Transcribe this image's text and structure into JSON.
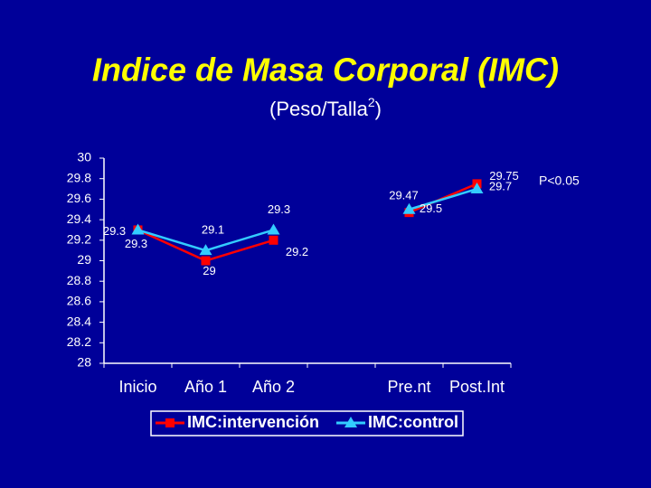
{
  "chart_data": {
    "type": "line",
    "title": "Indice de Masa Corporal (IMC)",
    "subtitle_parts": [
      "(Peso/Talla",
      "2",
      ")"
    ],
    "annotation": "P<0.05",
    "categories": [
      "Inicio",
      "Año 1",
      "Año 2",
      null,
      "Pre.nt",
      "Post.Int"
    ],
    "series": [
      {
        "name": "IMC:intervención",
        "color": "#ff0000",
        "marker": "square",
        "values": [
          29.3,
          29,
          29.2,
          null,
          29.47,
          29.75
        ]
      },
      {
        "name": "IMC:control",
        "color": "#33ccff",
        "marker": "triangle",
        "values": [
          29.3,
          29.1,
          29.3,
          null,
          29.5,
          29.7
        ]
      }
    ],
    "ylim": [
      28,
      30
    ],
    "yticks": [
      28,
      28.2,
      28.4,
      28.6,
      28.8,
      29,
      29.2,
      29.4,
      29.6,
      29.8,
      30
    ],
    "grid": false
  }
}
